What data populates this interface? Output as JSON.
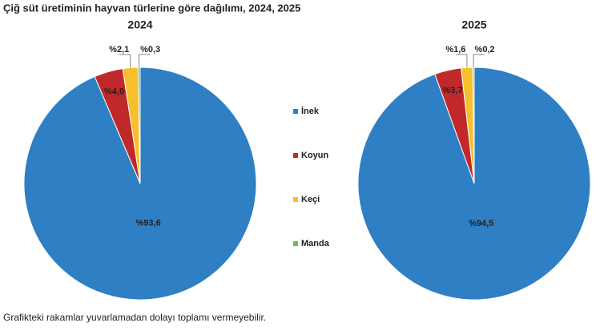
{
  "title": "Çiğ süt üretiminin hayvan türlerine göre dağılımı, 2024, 2025",
  "note": "Grafikteki rakamlar yuvarlamadan dolayı toplamı vermeyebilir.",
  "chart_data": [
    {
      "type": "pie",
      "title": "2024",
      "categories": [
        "İnek",
        "Koyun",
        "Keçi",
        "Manda"
      ],
      "values": [
        93.6,
        4.0,
        2.1,
        0.3
      ],
      "value_labels": [
        "%93,6",
        "%4,0",
        "%2,1",
        "%0,3"
      ],
      "colors": [
        "#2e7fc4",
        "#c0282a",
        "#f5c02c",
        "#7ab648"
      ]
    },
    {
      "type": "pie",
      "title": "2025",
      "categories": [
        "İnek",
        "Koyun",
        "Keçi",
        "Manda"
      ],
      "values": [
        94.5,
        3.7,
        1.6,
        0.2
      ],
      "value_labels": [
        "%94,5",
        "%3,7",
        "%1,6",
        "%0,2"
      ],
      "colors": [
        "#2e7fc4",
        "#c0282a",
        "#f5c02c",
        "#7ab648"
      ]
    }
  ]
}
